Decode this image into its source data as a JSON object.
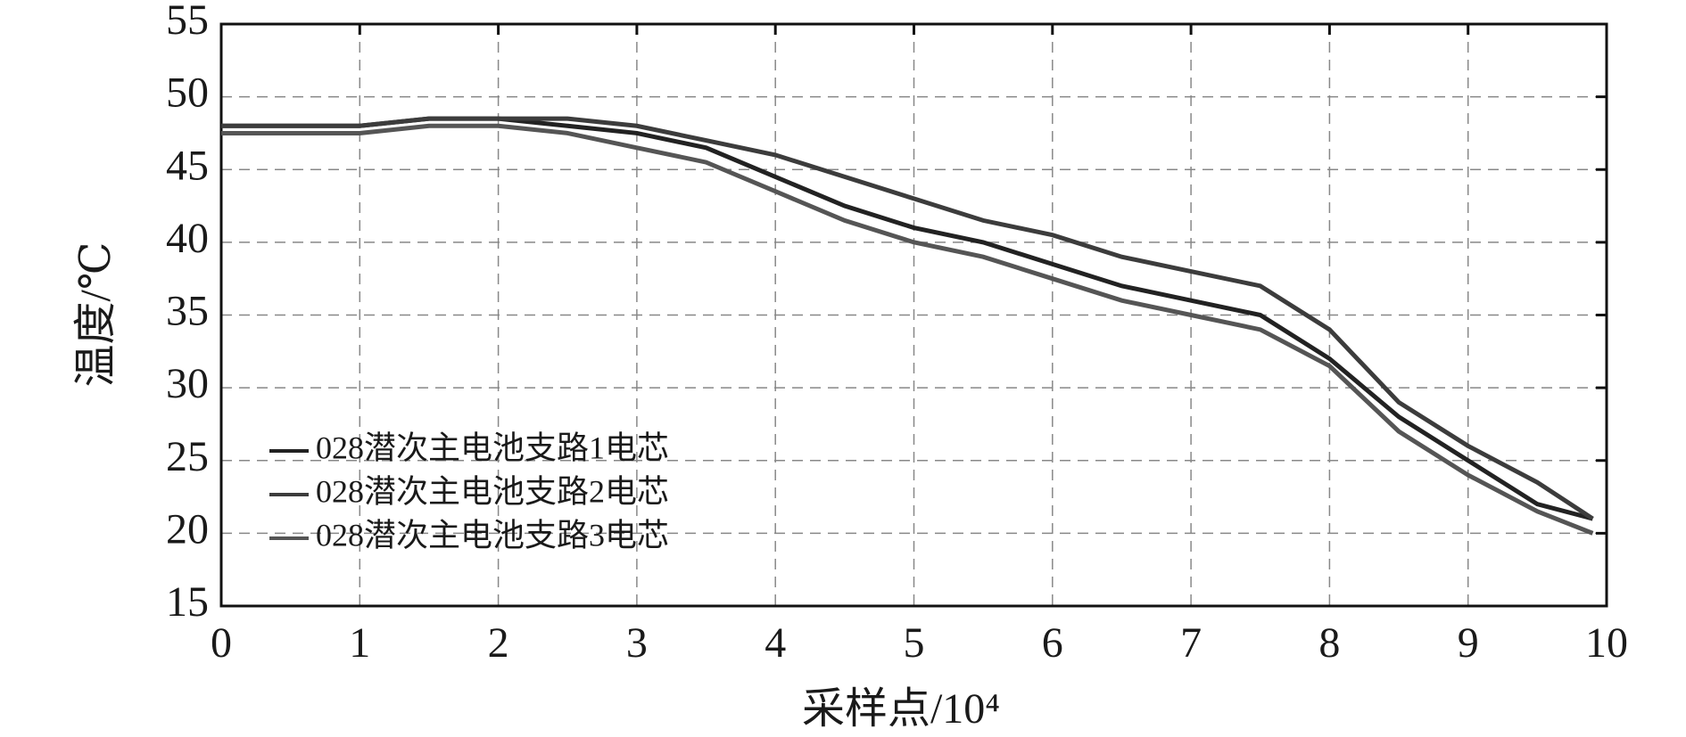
{
  "chart_data": {
    "type": "line",
    "x_label": "采样点/10⁴",
    "y_label": "温度/℃",
    "x": [
      0,
      0.5,
      1,
      1.5,
      2,
      2.5,
      3,
      3.5,
      4,
      4.5,
      5,
      5.5,
      6,
      6.5,
      7,
      7.5,
      8,
      8.5,
      9,
      9.5,
      9.9
    ],
    "series": [
      {
        "name": "028潜次主电池支路1电芯",
        "color": "#222222",
        "values": [
          48,
          48,
          48,
          48.5,
          48.5,
          48,
          47.5,
          46.5,
          44.5,
          42.5,
          41,
          40,
          38.5,
          37,
          36,
          35,
          32,
          28,
          25,
          22,
          21
        ]
      },
      {
        "name": "028潜次主电池支路2电芯",
        "color": "#3c3c3c",
        "values": [
          48,
          48,
          48,
          48.5,
          48.5,
          48.5,
          48,
          47,
          46,
          44.5,
          43,
          41.5,
          40.5,
          39,
          38,
          37,
          34,
          29,
          26,
          23.5,
          21
        ]
      },
      {
        "name": "028潜次主电池支路3电芯",
        "color": "#555555",
        "values": [
          47.5,
          47.5,
          47.5,
          48,
          48,
          47.5,
          46.5,
          45.5,
          43.5,
          41.5,
          40,
          39,
          37.5,
          36,
          35,
          34,
          31.5,
          27,
          24,
          21.5,
          20
        ]
      }
    ],
    "xlim": [
      0,
      10
    ],
    "xticks": [
      0,
      1,
      2,
      3,
      4,
      5,
      6,
      7,
      8,
      9,
      10
    ],
    "ylim": [
      15,
      55
    ],
    "yticks": [
      15,
      20,
      25,
      30,
      35,
      40,
      45,
      50,
      55
    ],
    "grid": true,
    "legend": "left"
  }
}
